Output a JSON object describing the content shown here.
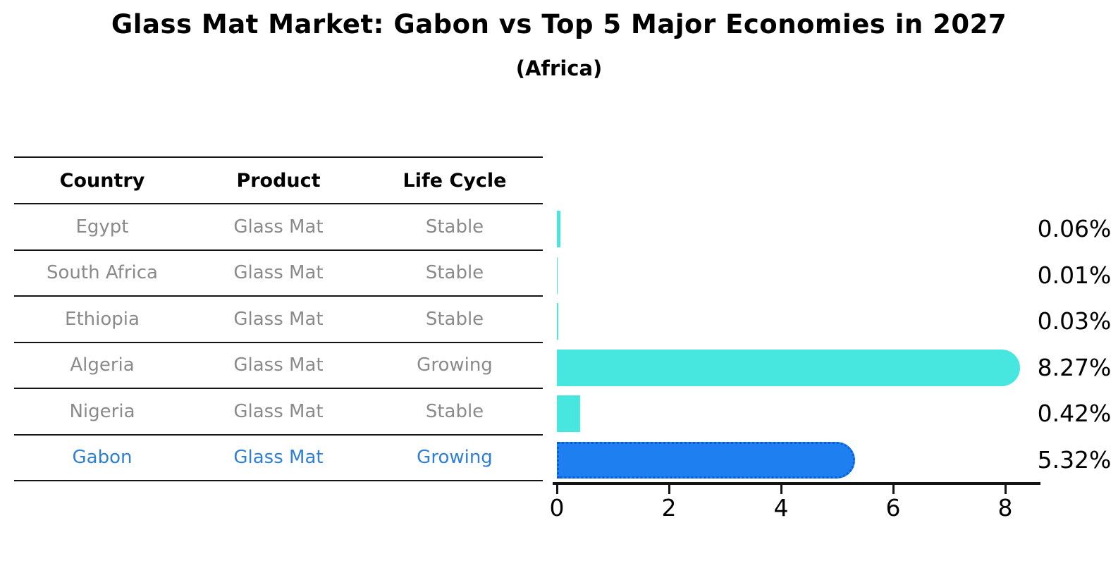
{
  "title": "Glass Mat Market: Gabon vs Top 5 Major Economies in 2027",
  "subtitle": "(Africa)",
  "table": {
    "headers": [
      "Country",
      "Product",
      "Life Cycle"
    ],
    "rows": [
      {
        "country": "Egypt",
        "product": "Glass Mat",
        "life_cycle": "Stable",
        "highlight": false
      },
      {
        "country": "South Africa",
        "product": "Glass Mat",
        "life_cycle": "Stable",
        "highlight": false
      },
      {
        "country": "Ethiopia",
        "product": "Glass Mat",
        "life_cycle": "Stable",
        "highlight": false
      },
      {
        "country": "Algeria",
        "product": "Glass Mat",
        "life_cycle": "Growing",
        "highlight": false
      },
      {
        "country": "Nigeria",
        "product": "Glass Mat",
        "life_cycle": "Stable",
        "highlight": false
      },
      {
        "country": "Gabon",
        "product": "Glass Mat",
        "life_cycle": "Growing",
        "highlight": true
      }
    ]
  },
  "chart_data": {
    "type": "bar",
    "orientation": "horizontal",
    "categories": [
      "Egypt",
      "South Africa",
      "Ethiopia",
      "Algeria",
      "Nigeria",
      "Gabon"
    ],
    "values": [
      0.06,
      0.01,
      0.03,
      8.27,
      0.42,
      5.32
    ],
    "value_labels": [
      "0.06%",
      "0.01%",
      "0.03%",
      "8.27%",
      "0.42%",
      "5.32%"
    ],
    "xticks": [
      0,
      2,
      4,
      6,
      8
    ],
    "xlim": [
      0,
      8.8
    ],
    "grid": false,
    "legend": "none",
    "highlight_index": 5,
    "colors": {
      "default_bar": "#47e7e0",
      "highlight_bar": "#1e80f0",
      "highlight_border": "#0c5cd8",
      "highlight_text": "#2e7fd6",
      "row_text": "#8a8a8a",
      "axis": "#141414"
    }
  }
}
